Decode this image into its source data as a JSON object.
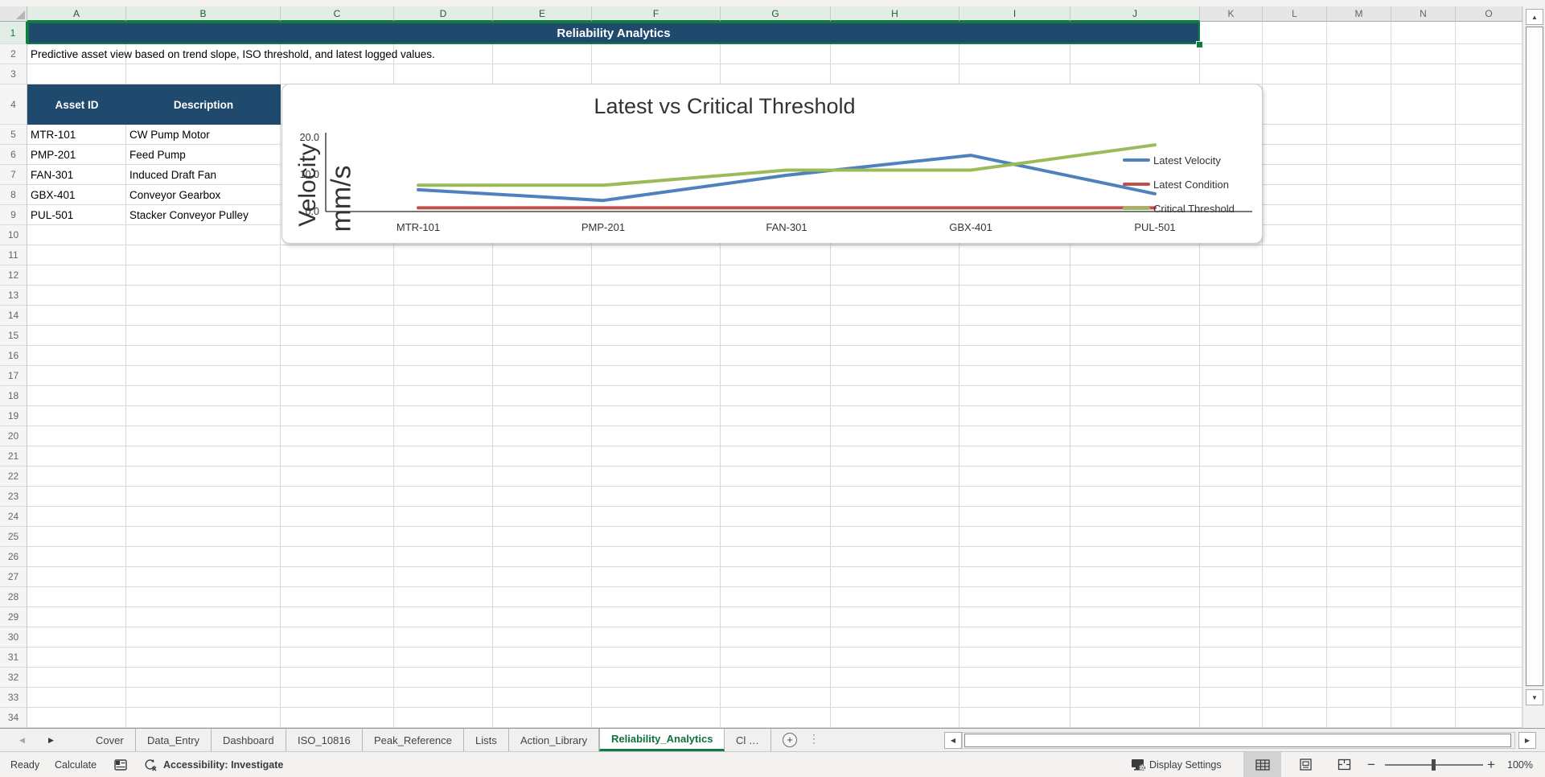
{
  "sheet": {
    "title_banner": "Reliability Analytics",
    "subtitle": "Predictive asset view based on trend slope, ISO threshold, and latest logged values.",
    "column_headers": [
      "A",
      "B",
      "C",
      "D",
      "E",
      "F",
      "G",
      "H",
      "I",
      "J",
      "K",
      "L",
      "M",
      "N",
      "O"
    ],
    "selected_columns": [
      "A",
      "B",
      "C",
      "D",
      "E",
      "F",
      "G",
      "H",
      "I",
      "J"
    ],
    "visible_rows": 34,
    "selected_row": 1
  },
  "table": {
    "headers": [
      "Asset ID",
      "Description"
    ],
    "rows": [
      [
        "MTR-101",
        "CW Pump Motor"
      ],
      [
        "PMP-201",
        "Feed Pump"
      ],
      [
        "FAN-301",
        "Induced Draft Fan"
      ],
      [
        "GBX-401",
        "Conveyor Gearbox"
      ],
      [
        "PUL-501",
        "Stacker Conveyor Pulley"
      ]
    ]
  },
  "chart_data": {
    "type": "line",
    "title": "Latest vs Critical Threshold",
    "categories": [
      "MTR-101",
      "PMP-201",
      "FAN-301",
      "GBX-401",
      "PUL-501"
    ],
    "series": [
      {
        "name": "Latest Velocity",
        "color": "#4F81BD",
        "values": [
          5.9,
          3.0,
          9.8,
          15.2,
          4.8
        ]
      },
      {
        "name": "Latest Condition",
        "color": "#C0504D",
        "values": [
          1.0,
          1.0,
          1.0,
          1.0,
          1.0
        ]
      },
      {
        "name": "Critical Threshold",
        "color": "#9BBB59",
        "values": [
          7.1,
          7.1,
          11.2,
          11.2,
          18.0
        ]
      }
    ],
    "ylabel_lines": [
      "Velocity",
      "mm/s"
    ],
    "ylim": [
      0,
      20
    ],
    "yticks": [
      0,
      10,
      20
    ],
    "ytick_labels": [
      "0.0",
      "10.0",
      "20.0"
    ],
    "grid": false,
    "legend_position": "right"
  },
  "tabs": {
    "items": [
      {
        "label": "Cover",
        "active": false
      },
      {
        "label": "Data_Entry",
        "active": false
      },
      {
        "label": "Dashboard",
        "active": false
      },
      {
        "label": "ISO_10816",
        "active": false
      },
      {
        "label": "Peak_Reference",
        "active": false
      },
      {
        "label": "Lists",
        "active": false
      },
      {
        "label": "Action_Library",
        "active": false
      },
      {
        "label": "Reliability_Analytics",
        "active": true
      },
      {
        "label": "Cl …",
        "active": false
      }
    ]
  },
  "status_bar": {
    "mode": "Ready",
    "calculate_label": "Calculate",
    "accessibility_label": "Accessibility: Investigate",
    "display_settings_label": "Display Settings",
    "zoom_level": "100%"
  },
  "colors": {
    "banner_navy": "#1F4A6E",
    "selection_green": "#107C41",
    "series_blue": "#4F81BD",
    "series_red": "#C0504D",
    "series_green": "#9BBB59"
  }
}
